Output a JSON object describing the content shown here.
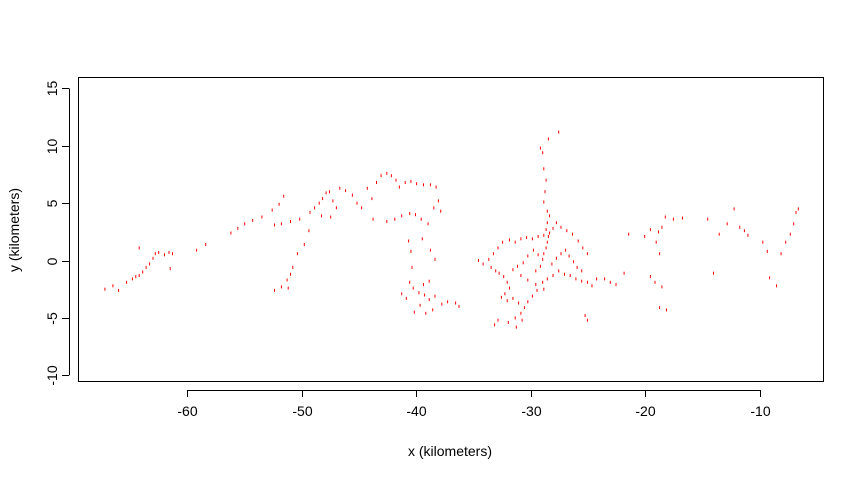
{
  "chart_data": {
    "type": "scatter",
    "title": "",
    "xlabel": "x (kilometers)",
    "ylabel": "y (kilometers)",
    "xlim": [
      -69.5,
      -4.5
    ],
    "ylim": [
      -10.5,
      16
    ],
    "xticks": [
      -60,
      -50,
      -40,
      -30,
      -20,
      -10
    ],
    "yticks": [
      -10,
      -5,
      0,
      5,
      10,
      15
    ],
    "xtick_labels": [
      "-60",
      "-50",
      "-40",
      "-30",
      "-20",
      "-10"
    ],
    "ytick_labels": [
      "-10",
      "-5",
      "0",
      "5",
      "10",
      "15"
    ],
    "grid": false,
    "legend": "none",
    "point_color": "#ff0000",
    "series": [
      {
        "values": [
          [
            -67.2,
            -2.5
          ],
          [
            -66.5,
            -2.2
          ],
          [
            -66.0,
            -2.6
          ],
          [
            -65.3,
            -1.9
          ],
          [
            -64.8,
            -1.6
          ],
          [
            -64.5,
            -1.4
          ],
          [
            -64.2,
            -1.3
          ],
          [
            -63.9,
            -1.0
          ],
          [
            -63.6,
            -0.6
          ],
          [
            -63.3,
            -0.3
          ],
          [
            -63.0,
            0.2
          ],
          [
            -62.8,
            0.6
          ],
          [
            -62.5,
            0.7
          ],
          [
            -62.0,
            0.5
          ],
          [
            -61.6,
            0.7
          ],
          [
            -61.3,
            0.6
          ],
          [
            -61.5,
            -0.7
          ],
          [
            -64.2,
            1.1
          ],
          [
            -59.2,
            0.9
          ],
          [
            -58.4,
            1.4
          ],
          [
            -56.2,
            2.4
          ],
          [
            -55.6,
            2.8
          ],
          [
            -55.0,
            3.2
          ],
          [
            -54.3,
            3.5
          ],
          [
            -53.5,
            3.8
          ],
          [
            -52.6,
            4.4
          ],
          [
            -52.0,
            4.9
          ],
          [
            -51.6,
            5.6
          ],
          [
            -52.4,
            3.1
          ],
          [
            -51.8,
            3.2
          ],
          [
            -51.0,
            3.4
          ],
          [
            -50.2,
            3.6
          ],
          [
            -49.4,
            2.6
          ],
          [
            -49.8,
            1.4
          ],
          [
            -50.4,
            0.6
          ],
          [
            -50.8,
            -0.6
          ],
          [
            -51.0,
            -1.2
          ],
          [
            -51.3,
            -1.7
          ],
          [
            -51.8,
            -2.3
          ],
          [
            -52.4,
            -2.6
          ],
          [
            -51.2,
            -2.4
          ],
          [
            -49.3,
            4.2
          ],
          [
            -48.9,
            4.6
          ],
          [
            -48.5,
            5.0
          ],
          [
            -48.2,
            5.4
          ],
          [
            -47.9,
            5.9
          ],
          [
            -47.6,
            6.0
          ],
          [
            -47.3,
            5.2
          ],
          [
            -47.0,
            4.6
          ],
          [
            -47.5,
            3.8
          ],
          [
            -48.3,
            3.9
          ],
          [
            -46.7,
            6.3
          ],
          [
            -46.2,
            6.1
          ],
          [
            -45.6,
            5.7
          ],
          [
            -45.2,
            5.0
          ],
          [
            -44.8,
            4.6
          ],
          [
            -44.3,
            6.3
          ],
          [
            -43.9,
            5.4
          ],
          [
            -43.5,
            6.8
          ],
          [
            -43.1,
            7.4
          ],
          [
            -42.6,
            7.6
          ],
          [
            -42.2,
            7.4
          ],
          [
            -41.8,
            7.0
          ],
          [
            -41.5,
            6.4
          ],
          [
            -41.0,
            6.8
          ],
          [
            -40.5,
            6.9
          ],
          [
            -40.0,
            6.7
          ],
          [
            -39.4,
            6.6
          ],
          [
            -38.8,
            6.6
          ],
          [
            -38.3,
            6.4
          ],
          [
            -43.8,
            3.6
          ],
          [
            -42.6,
            3.4
          ],
          [
            -41.9,
            3.6
          ],
          [
            -41.3,
            3.9
          ],
          [
            -40.6,
            4.1
          ],
          [
            -40.1,
            4.0
          ],
          [
            -39.6,
            3.6
          ],
          [
            -39.0,
            3.2
          ],
          [
            -38.5,
            4.6
          ],
          [
            -38.1,
            5.2
          ],
          [
            -37.9,
            4.3
          ],
          [
            -40.7,
            1.7
          ],
          [
            -40.5,
            0.8
          ],
          [
            -40.4,
            -0.6
          ],
          [
            -40.6,
            -1.9
          ],
          [
            -40.3,
            -2.4
          ],
          [
            -39.8,
            -2.8
          ],
          [
            -39.3,
            -3.0
          ],
          [
            -38.9,
            -3.4
          ],
          [
            -38.4,
            -3.1
          ],
          [
            -38.9,
            -1.8
          ],
          [
            -39.4,
            -2.1
          ],
          [
            -39.7,
            -3.9
          ],
          [
            -39.2,
            -4.6
          ],
          [
            -38.6,
            -4.3
          ],
          [
            -37.8,
            -3.8
          ],
          [
            -37.3,
            -3.6
          ],
          [
            -36.6,
            -3.7
          ],
          [
            -36.3,
            -4.0
          ],
          [
            -41.3,
            -2.9
          ],
          [
            -40.9,
            -3.3
          ],
          [
            -40.2,
            -4.5
          ],
          [
            -39.5,
            1.9
          ],
          [
            -38.8,
            0.9
          ],
          [
            -38.4,
            0.1
          ],
          [
            -34.6,
            0.0
          ],
          [
            -34.2,
            -0.3
          ],
          [
            -33.7,
            0.1
          ],
          [
            -33.3,
            0.6
          ],
          [
            -32.9,
            1.1
          ],
          [
            -32.5,
            1.6
          ],
          [
            -31.9,
            1.8
          ],
          [
            -31.4,
            1.6
          ],
          [
            -30.9,
            1.9
          ],
          [
            -30.4,
            2.0
          ],
          [
            -29.9,
            1.9
          ],
          [
            -29.4,
            2.1
          ],
          [
            -28.9,
            2.2
          ],
          [
            -28.4,
            2.4
          ],
          [
            -28.1,
            2.8
          ],
          [
            -27.8,
            3.3
          ],
          [
            -27.4,
            2.9
          ],
          [
            -26.9,
            2.6
          ],
          [
            -26.4,
            2.3
          ],
          [
            -25.9,
            1.7
          ],
          [
            -25.5,
            1.1
          ],
          [
            -25.1,
            0.6
          ],
          [
            -33.5,
            -0.6
          ],
          [
            -33.1,
            -0.9
          ],
          [
            -32.8,
            -1.1
          ],
          [
            -32.4,
            -1.4
          ],
          [
            -32.1,
            -1.9
          ],
          [
            -31.9,
            -2.4
          ],
          [
            -32.3,
            -2.9
          ],
          [
            -32.6,
            -3.2
          ],
          [
            -32.1,
            -3.5
          ],
          [
            -31.6,
            -3.3
          ],
          [
            -31.1,
            -3.7
          ],
          [
            -30.6,
            -4.1
          ],
          [
            -30.9,
            -4.6
          ],
          [
            -31.4,
            -5.0
          ],
          [
            -32.0,
            -5.4
          ],
          [
            -32.9,
            -5.2
          ],
          [
            -33.2,
            -5.6
          ],
          [
            -31.3,
            -5.8
          ],
          [
            -30.8,
            -5.2
          ],
          [
            -30.3,
            -3.6
          ],
          [
            -29.9,
            -3.1
          ],
          [
            -29.5,
            -2.6
          ],
          [
            -29.0,
            -1.9
          ],
          [
            -28.6,
            -1.6
          ],
          [
            -28.1,
            -1.3
          ],
          [
            -27.6,
            -0.9
          ],
          [
            -27.1,
            -1.2
          ],
          [
            -26.6,
            -1.3
          ],
          [
            -26.1,
            -1.6
          ],
          [
            -25.6,
            -1.8
          ],
          [
            -25.1,
            -1.9
          ],
          [
            -24.7,
            -2.2
          ],
          [
            -24.3,
            -1.6
          ],
          [
            -29.6,
            -0.9
          ],
          [
            -29.2,
            -0.5
          ],
          [
            -29.0,
            0.1
          ],
          [
            -28.9,
            0.6
          ],
          [
            -28.7,
            1.1
          ],
          [
            -28.6,
            1.6
          ],
          [
            -28.5,
            2.1
          ],
          [
            -28.7,
            2.7
          ],
          [
            -28.6,
            3.3
          ],
          [
            -28.4,
            3.9
          ],
          [
            -28.6,
            4.3
          ],
          [
            -28.9,
            5.1
          ],
          [
            -28.8,
            6.0
          ],
          [
            -28.7,
            7.0
          ],
          [
            -28.9,
            8.0
          ],
          [
            -29.0,
            9.4
          ],
          [
            -29.2,
            9.8
          ],
          [
            -28.5,
            10.6
          ],
          [
            -27.6,
            11.2
          ],
          [
            -28.2,
            -0.3
          ],
          [
            -27.8,
            0.2
          ],
          [
            -27.4,
            0.6
          ],
          [
            -27.0,
            0.9
          ],
          [
            -26.7,
            0.4
          ],
          [
            -26.3,
            -0.1
          ],
          [
            -26.0,
            -0.6
          ],
          [
            -25.6,
            -0.9
          ],
          [
            -29.4,
            0.5
          ],
          [
            -29.8,
            0.9
          ],
          [
            -30.3,
            0.4
          ],
          [
            -30.7,
            -0.2
          ],
          [
            -31.2,
            -0.5
          ],
          [
            -31.6,
            -0.8
          ],
          [
            -30.9,
            -1.3
          ],
          [
            -30.3,
            -1.7
          ],
          [
            -29.6,
            -2.1
          ],
          [
            -28.9,
            -2.5
          ],
          [
            -25.3,
            -4.8
          ],
          [
            -25.1,
            -5.2
          ],
          [
            -23.6,
            -1.6
          ],
          [
            -23.1,
            -1.9
          ],
          [
            -22.6,
            -2.1
          ],
          [
            -21.9,
            -1.1
          ],
          [
            -21.5,
            2.3
          ],
          [
            -20.1,
            2.1
          ],
          [
            -19.6,
            2.7
          ],
          [
            -19.1,
            1.6
          ],
          [
            -18.9,
            2.5
          ],
          [
            -18.8,
            0.6
          ],
          [
            -18.6,
            2.9
          ],
          [
            -18.3,
            3.8
          ],
          [
            -19.6,
            -1.4
          ],
          [
            -19.2,
            -1.9
          ],
          [
            -18.6,
            -2.3
          ],
          [
            -18.8,
            -4.1
          ],
          [
            -18.2,
            -4.3
          ],
          [
            -17.6,
            3.6
          ],
          [
            -16.8,
            3.7
          ],
          [
            -14.6,
            3.6
          ],
          [
            -14.1,
            -1.1
          ],
          [
            -13.6,
            2.3
          ],
          [
            -12.9,
            3.2
          ],
          [
            -12.3,
            4.5
          ],
          [
            -11.8,
            2.9
          ],
          [
            -11.4,
            2.6
          ],
          [
            -11.1,
            2.2
          ],
          [
            -9.8,
            1.6
          ],
          [
            -9.4,
            0.8
          ],
          [
            -9.2,
            -1.5
          ],
          [
            -8.6,
            -2.2
          ],
          [
            -8.2,
            0.6
          ],
          [
            -7.8,
            1.6
          ],
          [
            -7.4,
            2.3
          ],
          [
            -7.1,
            3.2
          ],
          [
            -6.9,
            4.2
          ],
          [
            -6.7,
            4.5
          ]
        ]
      }
    ]
  }
}
